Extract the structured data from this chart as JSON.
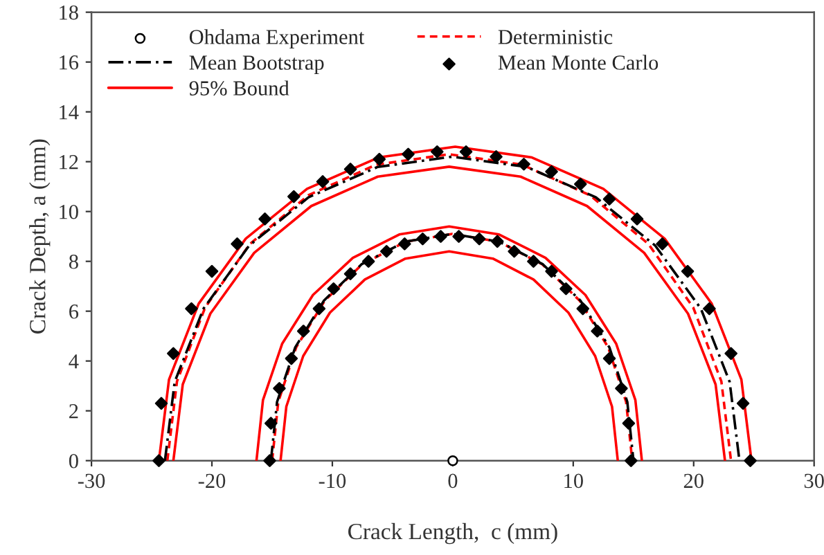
{
  "chart_data": {
    "type": "line",
    "xlabel": "Crack Length,  c (mm)",
    "ylabel": "Crack Depth, a (mm)",
    "xlim": [
      -30,
      30
    ],
    "xticks": [
      -30,
      -20,
      -10,
      0,
      10,
      20,
      30
    ],
    "ylim": [
      0,
      18
    ],
    "yticks": [
      0,
      2,
      4,
      6,
      8,
      10,
      12,
      14,
      16,
      18
    ],
    "grid": false,
    "legend": "top left",
    "series": [
      {
        "name": "Ohdama Experiment",
        "type": "scatter",
        "marker": "circle",
        "color": "#000000",
        "x": [
          0
        ],
        "values": [
          0
        ]
      },
      {
        "name": "Deterministic",
        "line_style": "dashed",
        "color": "#ff0000",
        "x": [
          -23.7,
          -22.9,
          -20.56,
          -16.84,
          -12.0,
          -6.36,
          -0.3,
          5.76,
          11.4,
          16.24,
          19.96,
          22.3,
          23.1,
          null,
          -15,
          -14.49,
          -13,
          -10.62,
          -7.53,
          -3.92,
          -0.05,
          3.82,
          7.43,
          10.52,
          12.9,
          14.39,
          14.9
        ],
        "values": [
          0,
          3.18,
          6.15,
          8.7,
          10.65,
          11.88,
          12.3,
          11.88,
          10.65,
          8.7,
          6.15,
          3.18,
          0,
          null,
          0,
          2.36,
          4.55,
          6.43,
          7.88,
          8.79,
          9.1,
          8.79,
          7.88,
          6.43,
          4.55,
          2.36,
          0
        ]
      },
      {
        "name": "Mean Bootstrap",
        "line_style": "dashdot",
        "color": "#000000",
        "x": [
          -23.9,
          -23.09,
          -20.7,
          -16.91,
          -11.98,
          -6.23,
          -0.05,
          6.13,
          11.88,
          16.81,
          20.6,
          22.99,
          23.8,
          null,
          -15.1,
          -14.59,
          -13.08,
          -10.69,
          -7.58,
          -3.95,
          -0.05,
          3.85,
          7.48,
          10.59,
          13.0,
          14.49,
          15.0
        ],
        "values": [
          0,
          3.16,
          6.1,
          8.63,
          10.57,
          11.79,
          12.2,
          11.79,
          10.57,
          8.63,
          6.1,
          3.16,
          0,
          null,
          0,
          2.36,
          4.55,
          6.43,
          7.88,
          8.79,
          9.1,
          8.79,
          7.88,
          6.43,
          4.55,
          2.36,
          0
        ]
      },
      {
        "name": "Mean Monte Carlo",
        "type": "scatter",
        "marker": "diamond",
        "color": "#000000",
        "x": [
          -24.4,
          -24.2,
          -23.2,
          -21.7,
          -20.0,
          -17.9,
          -15.6,
          -13.2,
          -10.8,
          -8.5,
          -6.1,
          -3.7,
          -1.3,
          1.1,
          3.6,
          5.9,
          8.2,
          10.6,
          13.0,
          15.3,
          17.4,
          19.5,
          21.3,
          23.1,
          24.1,
          24.7,
          -15.2,
          -15.1,
          -14.4,
          -13.4,
          -12.4,
          -11.1,
          -9.9,
          -8.5,
          -7.0,
          -5.5,
          -4.0,
          -2.5,
          -1.0,
          0.5,
          2.2,
          3.7,
          5.1,
          6.7,
          8.2,
          9.4,
          10.8,
          12.0,
          13.0,
          14.0,
          14.6,
          14.8
        ],
        "values": [
          0,
          2.3,
          4.3,
          6.1,
          7.6,
          8.7,
          9.7,
          10.6,
          11.2,
          11.7,
          12.1,
          12.3,
          12.4,
          12.4,
          12.2,
          11.9,
          11.6,
          11.1,
          10.5,
          9.7,
          8.7,
          7.6,
          6.1,
          4.3,
          2.3,
          0,
          0,
          1.5,
          2.9,
          4.1,
          5.2,
          6.1,
          6.9,
          7.5,
          8.0,
          8.4,
          8.7,
          8.9,
          9.0,
          9.0,
          8.9,
          8.8,
          8.4,
          8.0,
          7.6,
          6.9,
          6.1,
          5.2,
          4.1,
          2.9,
          1.5,
          0
        ]
      },
      {
        "name": "95% Bound",
        "line_style": "solid",
        "color": "#ff0000",
        "x": [
          -24.4,
          -23.56,
          -21.1,
          -17.19,
          -12.1,
          -6.17,
          0.2,
          6.57,
          12.5,
          17.59,
          21.5,
          23.96,
          24.8,
          null,
          -23.2,
          -22.42,
          -20.13,
          -16.49,
          -11.75,
          -6.23,
          -0.3,
          5.63,
          11.15,
          15.89,
          19.53,
          21.82,
          22.6,
          null,
          -16.3,
          -15.76,
          -14.16,
          -11.61,
          -8.3,
          -4.44,
          -0.3,
          3.84,
          7.7,
          11.01,
          13.56,
          15.16,
          15.7,
          null,
          -14.3,
          -13.82,
          -12.42,
          -10.2,
          -7.3,
          -3.93,
          -0.3,
          3.33,
          6.7,
          9.6,
          11.82,
          13.22,
          13.7
        ],
        "values": [
          0,
          3.26,
          6.3,
          8.91,
          10.91,
          12.17,
          12.6,
          12.17,
          10.91,
          8.91,
          6.3,
          3.26,
          0,
          null,
          0,
          3.06,
          5.9,
          8.34,
          10.22,
          11.4,
          11.8,
          11.4,
          10.22,
          8.34,
          5.9,
          3.06,
          0,
          null,
          0,
          2.43,
          4.7,
          6.65,
          8.14,
          9.08,
          9.4,
          9.08,
          8.14,
          6.65,
          4.7,
          2.43,
          0,
          null,
          0,
          2.17,
          4.2,
          5.94,
          7.27,
          8.11,
          8.4,
          8.11,
          7.27,
          5.94,
          4.2,
          2.17,
          0
        ]
      }
    ]
  }
}
